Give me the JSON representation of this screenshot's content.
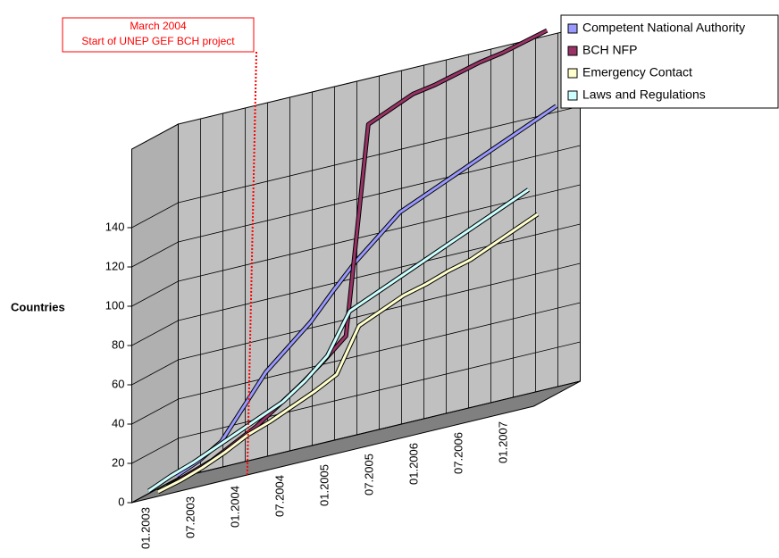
{
  "chart_data": {
    "type": "line3d",
    "y_label": "Countries",
    "annotation": [
      "March 2004",
      "Start of UNEP GEF BCH project"
    ],
    "categories": [
      "01.2003",
      null,
      "07.2003",
      null,
      "01.2004",
      null,
      "07.2004",
      null,
      "01.2005",
      null,
      "07.2005",
      null,
      "01.2006",
      null,
      "07.2006",
      null,
      "01.2007",
      null
    ],
    "series": [
      {
        "name": "Competent National Authority",
        "color": "#9999ff",
        "values": [
          3,
          8,
          15,
          30,
          45,
          55,
          65,
          78,
          90,
          100,
          110,
          115,
          120,
          125,
          130,
          135,
          140,
          145
        ]
      },
      {
        "name": "BCH NFP",
        "color": "#993366",
        "values": [
          0,
          4,
          8,
          14,
          20,
          28,
          36,
          45,
          55,
          160,
          165,
          170,
          172,
          175,
          178,
          180,
          183,
          186
        ]
      },
      {
        "name": "Emergency Contact",
        "color": "#ffffcc",
        "values": [
          0,
          3,
          7,
          12,
          18,
          22,
          27,
          32,
          38,
          60,
          65,
          70,
          73,
          77,
          80,
          85,
          90,
          95
        ]
      },
      {
        "name": "Laws and Regulations",
        "color": "#ccffff",
        "values": [
          3,
          8,
          12,
          17,
          22,
          27,
          32,
          40,
          50,
          70,
          75,
          80,
          85,
          90,
          95,
          100,
          105,
          110
        ]
      }
    ],
    "ylim": [
      0,
      180
    ],
    "yticks": [
      0,
      20,
      40,
      60,
      80,
      100,
      120,
      140
    ],
    "grid": true,
    "legend": "top-right"
  }
}
